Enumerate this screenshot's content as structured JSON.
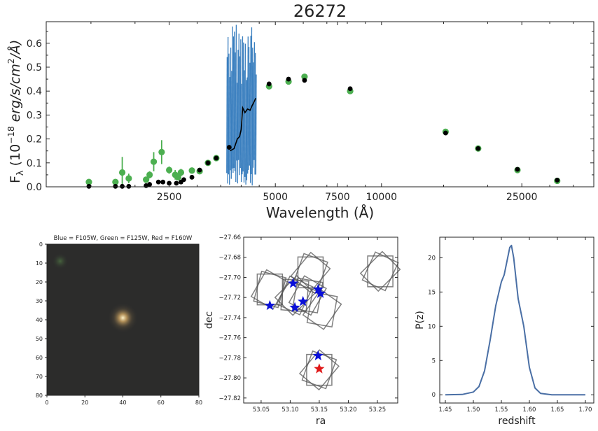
{
  "chart_data": [
    {
      "type": "scatter",
      "title": "26272",
      "xlabel": "Wavelength (Å)",
      "ylabel_parts": {
        "f": "F",
        "sub": "λ",
        "open": " (10",
        "exp": "−18",
        "units": " erg/s/cm",
        "exp2": "2",
        "close": "/Å)"
      },
      "xscale": "log",
      "xlim": [
        1120,
        40000
      ],
      "ylim": [
        0,
        0.69
      ],
      "xticks": [
        2500,
        5000,
        7500,
        10000,
        25000
      ],
      "xtick_labels": [
        "2500",
        "5000",
        "7500",
        "10000",
        "25000"
      ],
      "yticks": [
        0.0,
        0.1,
        0.2,
        0.3,
        0.4,
        0.5,
        0.6
      ],
      "ytick_labels": [
        "0.0",
        "0.1",
        "0.2",
        "0.3",
        "0.4",
        "0.5",
        "0.6"
      ],
      "photometry": [
        {
          "x": 1480,
          "y": 0.02,
          "err": 0.005
        },
        {
          "x": 1760,
          "y": 0.02,
          "err": 0.01
        },
        {
          "x": 1840,
          "y": 0.06,
          "err": 0.065
        },
        {
          "x": 1920,
          "y": 0.035,
          "err": 0.02
        },
        {
          "x": 2150,
          "y": 0.03,
          "err": 0.012
        },
        {
          "x": 2200,
          "y": 0.05,
          "err": 0.015
        },
        {
          "x": 2260,
          "y": 0.105,
          "err": 0.04
        },
        {
          "x": 2380,
          "y": 0.145,
          "err": 0.05
        },
        {
          "x": 2500,
          "y": 0.07,
          "err": 0.015
        },
        {
          "x": 2600,
          "y": 0.05,
          "err": 0.02
        },
        {
          "x": 2650,
          "y": 0.04,
          "err": 0.01
        },
        {
          "x": 2700,
          "y": 0.06,
          "err": 0.015
        },
        {
          "x": 2900,
          "y": 0.068,
          "err": 0.01
        },
        {
          "x": 3050,
          "y": 0.065,
          "err": 0.01
        },
        {
          "x": 3220,
          "y": 0.1,
          "err": 0.01
        },
        {
          "x": 3400,
          "y": 0.12,
          "err": 0.01
        },
        {
          "x": 4800,
          "y": 0.42,
          "err": 0.01
        },
        {
          "x": 5450,
          "y": 0.44,
          "err": 0.01
        },
        {
          "x": 6050,
          "y": 0.46,
          "err": 0.01
        },
        {
          "x": 8150,
          "y": 0.4,
          "err": 0.01
        },
        {
          "x": 15200,
          "y": 0.23,
          "err": 0.005
        },
        {
          "x": 18800,
          "y": 0.16,
          "err": 0.005
        },
        {
          "x": 24300,
          "y": 0.07,
          "err": 0.005
        },
        {
          "x": 31500,
          "y": 0.025,
          "err": 0.005
        }
      ],
      "model": [
        {
          "x": 1480,
          "y": 0.002
        },
        {
          "x": 1760,
          "y": 0.002
        },
        {
          "x": 1840,
          "y": 0.002
        },
        {
          "x": 1920,
          "y": 0.002
        },
        {
          "x": 2150,
          "y": 0.005
        },
        {
          "x": 2200,
          "y": 0.01
        },
        {
          "x": 2330,
          "y": 0.02
        },
        {
          "x": 2400,
          "y": 0.02
        },
        {
          "x": 2500,
          "y": 0.015
        },
        {
          "x": 2620,
          "y": 0.015
        },
        {
          "x": 2700,
          "y": 0.02
        },
        {
          "x": 2750,
          "y": 0.03
        },
        {
          "x": 2900,
          "y": 0.04
        },
        {
          "x": 3050,
          "y": 0.07
        },
        {
          "x": 3220,
          "y": 0.1
        },
        {
          "x": 3400,
          "y": 0.12
        },
        {
          "x": 3700,
          "y": 0.165
        },
        {
          "x": 4800,
          "y": 0.43
        },
        {
          "x": 5450,
          "y": 0.45
        },
        {
          "x": 6050,
          "y": 0.445
        },
        {
          "x": 8150,
          "y": 0.41
        },
        {
          "x": 15200,
          "y": 0.225
        },
        {
          "x": 18800,
          "y": 0.16
        },
        {
          "x": 24300,
          "y": 0.073
        },
        {
          "x": 31500,
          "y": 0.028
        }
      ],
      "model_spectrum": [
        {
          "x": 3720,
          "y": 0.15
        },
        {
          "x": 3820,
          "y": 0.16
        },
        {
          "x": 3900,
          "y": 0.2
        },
        {
          "x": 3960,
          "y": 0.21
        },
        {
          "x": 4000,
          "y": 0.24
        },
        {
          "x": 4040,
          "y": 0.33
        },
        {
          "x": 4100,
          "y": 0.31
        },
        {
          "x": 4170,
          "y": 0.325
        },
        {
          "x": 4240,
          "y": 0.32
        },
        {
          "x": 4300,
          "y": 0.34
        },
        {
          "x": 4350,
          "y": 0.355
        },
        {
          "x": 4400,
          "y": 0.37
        }
      ],
      "spectrum_range": [
        3640,
        4420
      ],
      "colors": {
        "photometry": "#4caf50",
        "model": "#000000",
        "spectrum": "#3a7fbf"
      }
    },
    {
      "type": "heatmap",
      "title": "Blue = F105W, Green = F125W, Red = F160W",
      "xlim": [
        0,
        80
      ],
      "ylim": [
        0,
        80
      ],
      "ticks": [
        0,
        20,
        40,
        60,
        80
      ],
      "yticks": [
        0,
        10,
        20,
        30,
        40,
        50,
        60,
        70,
        80
      ],
      "source": {
        "x": 40,
        "y": 39
      }
    },
    {
      "type": "scatter",
      "xlabel": "ra",
      "ylabel": "dec",
      "xlim": [
        53.02,
        53.285
      ],
      "ylim": [
        -27.825,
        -27.66
      ],
      "xticks": [
        53.05,
        53.1,
        53.15,
        53.2,
        53.25
      ],
      "xtick_labels": [
        "53.05",
        "53.10",
        "53.15",
        "53.20",
        "53.25"
      ],
      "yticks": [
        -27.66,
        -27.68,
        -27.7,
        -27.72,
        -27.74,
        -27.76,
        -27.78,
        -27.8,
        -27.82
      ],
      "ytick_labels": [
        "−27.66",
        "−27.68",
        "−27.70",
        "−27.72",
        "−27.74",
        "−27.76",
        "−27.78",
        "−27.80",
        "−27.82"
      ],
      "pointings": [
        {
          "ra": 53.065,
          "dec": -27.712,
          "rotations": [
            0,
            15,
            30
          ]
        },
        {
          "ra": 53.108,
          "dec": -27.718,
          "rotations": [
            5,
            25,
            45
          ]
        },
        {
          "ra": 53.13,
          "dec": -27.718,
          "rotations": [
            10,
            30
          ]
        },
        {
          "ra": 53.135,
          "dec": -27.695,
          "rotations": [
            0,
            20,
            40
          ]
        },
        {
          "ra": 53.155,
          "dec": -27.732,
          "rotations": [
            10,
            35
          ]
        },
        {
          "ra": 53.255,
          "dec": -27.694,
          "rotations": [
            0,
            25,
            45
          ]
        },
        {
          "ra": 53.15,
          "dec": -27.792,
          "rotations": [
            0,
            20,
            40
          ]
        }
      ],
      "stars_blue": [
        {
          "ra": 53.065,
          "dec": -27.728
        },
        {
          "ra": 53.105,
          "dec": -27.706
        },
        {
          "ra": 53.108,
          "dec": -27.73
        },
        {
          "ra": 53.122,
          "dec": -27.724
        },
        {
          "ra": 53.148,
          "dec": -27.712
        },
        {
          "ra": 53.152,
          "dec": -27.716
        },
        {
          "ra": 53.148,
          "dec": -27.778
        }
      ],
      "star_red": {
        "ra": 53.15,
        "dec": -27.791
      }
    },
    {
      "type": "line",
      "xlabel": "redshift",
      "ylabel": "P(z)",
      "xlim": [
        1.44,
        1.715
      ],
      "ylim": [
        -1.2,
        23
      ],
      "xticks": [
        1.45,
        1.5,
        1.55,
        1.6,
        1.65,
        1.7
      ],
      "xtick_labels": [
        "1.45",
        "1.50",
        "1.55",
        "1.60",
        "1.65",
        "1.70"
      ],
      "yticks": [
        0,
        5,
        10,
        15,
        20
      ],
      "ytick_labels": [
        "0",
        "5",
        "10",
        "15",
        "20"
      ],
      "x": [
        1.45,
        1.48,
        1.5,
        1.51,
        1.52,
        1.53,
        1.54,
        1.55,
        1.555,
        1.56,
        1.565,
        1.568,
        1.572,
        1.576,
        1.58,
        1.585,
        1.59,
        1.6,
        1.61,
        1.62,
        1.64,
        1.7
      ],
      "y": [
        0,
        0.05,
        0.4,
        1.2,
        3.5,
        8,
        13,
        16.5,
        17.5,
        19.5,
        21.5,
        21.8,
        20,
        17,
        14,
        12,
        10,
        4,
        1,
        0.2,
        0,
        0
      ],
      "color": "#4a6fa5"
    }
  ]
}
